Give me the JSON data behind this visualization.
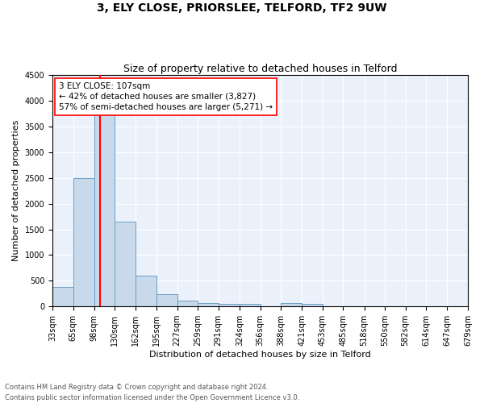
{
  "title": "3, ELY CLOSE, PRIORSLEE, TELFORD, TF2 9UW",
  "subtitle": "Size of property relative to detached houses in Telford",
  "xlabel": "Distribution of detached houses by size in Telford",
  "ylabel": "Number of detached properties",
  "bar_color": "#c9d9ec",
  "bar_edge_color": "#6a9fc0",
  "bg_color": "#eaf1fb",
  "grid_color": "white",
  "vline_x": 107,
  "vline_color": "red",
  "annotation_line1": "3 ELY CLOSE: 107sqm",
  "annotation_line2": "← 42% of detached houses are smaller (3,827)",
  "annotation_line3": "57% of semi-detached houses are larger (5,271) →",
  "annotation_box_color": "white",
  "annotation_box_edge": "red",
  "bin_edges": [
    33,
    65,
    98,
    130,
    162,
    195,
    227,
    259,
    291,
    324,
    356,
    388,
    421,
    453,
    485,
    518,
    550,
    582,
    614,
    647,
    679
  ],
  "bin_counts": [
    380,
    2500,
    3827,
    1650,
    600,
    240,
    110,
    60,
    50,
    50,
    0,
    60,
    50,
    0,
    0,
    0,
    0,
    0,
    0,
    0
  ],
  "ylim": [
    0,
    4500
  ],
  "yticks": [
    0,
    500,
    1000,
    1500,
    2000,
    2500,
    3000,
    3500,
    4000,
    4500
  ],
  "footnote": "Contains HM Land Registry data © Crown copyright and database right 2024.\nContains public sector information licensed under the Open Government Licence v3.0.",
  "footnote_color": "#555555",
  "title_fontsize": 10,
  "subtitle_fontsize": 9,
  "xlabel_fontsize": 8,
  "ylabel_fontsize": 8,
  "tick_fontsize": 7,
  "annotation_fontsize": 7.5,
  "footnote_fontsize": 6
}
